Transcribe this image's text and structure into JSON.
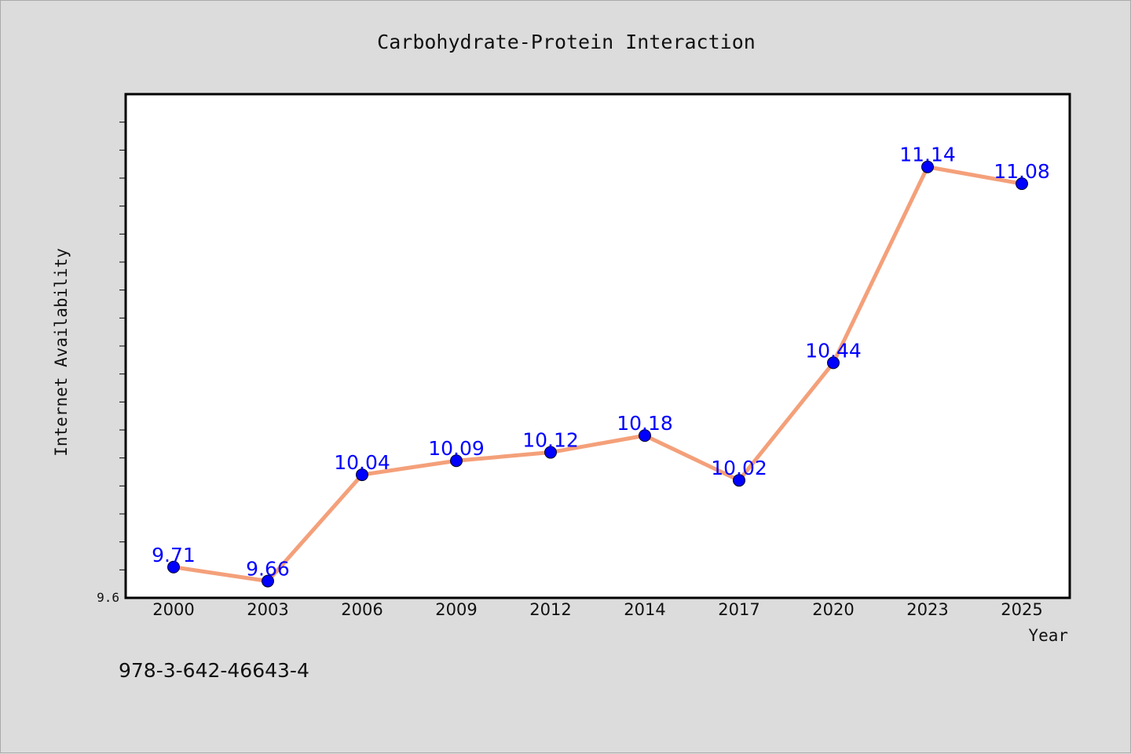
{
  "chart_data": {
    "type": "line",
    "title": "Carbohydrate-Protein Interaction",
    "xlabel": "Year",
    "ylabel": "Internet Availability",
    "categories": [
      "2000",
      "2003",
      "2006",
      "2009",
      "2012",
      "2014",
      "2017",
      "2020",
      "2023",
      "2025"
    ],
    "values": [
      9.71,
      9.66,
      10.04,
      10.09,
      10.12,
      10.18,
      10.02,
      10.44,
      11.14,
      11.08
    ],
    "data_labels": [
      "9.71",
      "9.66",
      "10.04",
      "10.09",
      "10.12",
      "10.18",
      "10.02",
      "10.44",
      "11.14",
      "11.08"
    ],
    "ylim": [
      9.6,
      11.4
    ],
    "y_tick_label": "9.6",
    "grid": false,
    "legend": "none",
    "colors": {
      "line": "#f4a07a",
      "marker": "#0000ff",
      "data_label": "#0000ff",
      "plot_background": "#ffffff",
      "figure_background": "#dcdcdc"
    }
  },
  "footer": {
    "isbn": "978-3-642-46643-4"
  }
}
